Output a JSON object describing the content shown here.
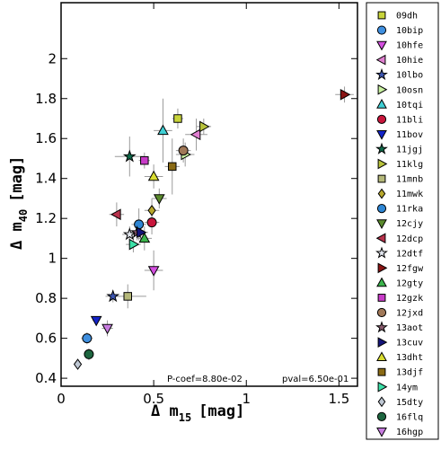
{
  "chart_data": {
    "type": "scatter",
    "xlabel": "Δ m",
    "xlabel_sub": "15",
    "xlabel_unit": "[mag]",
    "ylabel": "Δ m",
    "ylabel_sub": "40",
    "ylabel_unit": "[mag]",
    "xlim": [
      0,
      1.6
    ],
    "ylim": [
      0.36,
      2.28
    ],
    "xticks": [
      0,
      0.5,
      1,
      1.5
    ],
    "yticks": [
      0.4,
      0.6,
      0.8,
      1,
      1.2,
      1.4,
      1.6,
      1.8,
      2
    ],
    "grid": false,
    "legend_position": "right, outside plot",
    "annotations": {
      "pcoef": "P-coef=8.80e-02",
      "pval": "pval=6.50e-01"
    },
    "series": [
      {
        "name": "09dh",
        "marker": "square",
        "color": "#c8d43a",
        "x": 0.63,
        "y": 1.7,
        "xerr": 0.03,
        "yerr": 0.05
      },
      {
        "name": "10bip",
        "marker": "circle",
        "color": "#3f8fdf",
        "x": 0.14,
        "y": 0.6,
        "xerr": 0.03,
        "yerr": 0.03
      },
      {
        "name": "10hfe",
        "marker": "triangle-down",
        "color": "#d44fe0",
        "x": 0.5,
        "y": 0.94,
        "xerr": 0.05,
        "yerr": 0.1
      },
      {
        "name": "10hie",
        "marker": "triangle-left",
        "color": "#e07fd0",
        "x": 0.73,
        "y": 1.62,
        "xerr": 0.06,
        "yerr": 0.08
      },
      {
        "name": "10lbo",
        "marker": "star",
        "color": "#3d56b3",
        "x": 0.28,
        "y": 0.81,
        "xerr": 0.04,
        "yerr": 0.03
      },
      {
        "name": "10osn",
        "marker": "triangle-right",
        "color": "#c8f0a0",
        "x": 0.67,
        "y": 1.52,
        "xerr": 0.05,
        "yerr": 0.06
      },
      {
        "name": "10tqi",
        "marker": "triangle-up",
        "color": "#3fcfd4",
        "x": 0.55,
        "y": 1.64,
        "xerr": 0.05,
        "yerr": 0.16
      },
      {
        "name": "11bli",
        "marker": "circle",
        "color": "#c8163c",
        "x": 0.49,
        "y": 1.18,
        "xerr": 0.04,
        "yerr": 0.06
      },
      {
        "name": "11bov",
        "marker": "triangle-down",
        "color": "#1424c8",
        "x": 0.19,
        "y": 0.69,
        "xerr": 0.02,
        "yerr": 0.02
      },
      {
        "name": "11jgj",
        "marker": "star",
        "color": "#0e6a4a",
        "x": 0.37,
        "y": 1.51,
        "xerr": 0.08,
        "yerr": 0.1
      },
      {
        "name": "11klg",
        "marker": "triangle-right",
        "color": "#b8c23c",
        "x": 0.77,
        "y": 1.66,
        "xerr": 0.04,
        "yerr": 0.04
      },
      {
        "name": "11mnb",
        "marker": "square",
        "color": "#b5b87a",
        "x": 0.36,
        "y": 0.81,
        "xerr": 0.1,
        "yerr": 0.06
      },
      {
        "name": "11mwk",
        "marker": "diamond",
        "color": "#b8a82c",
        "x": 0.49,
        "y": 1.24,
        "xerr": 0.04,
        "yerr": 0.06
      },
      {
        "name": "11rka",
        "marker": "circle",
        "color": "#2e86d4",
        "x": 0.42,
        "y": 1.17,
        "xerr": 0.04,
        "yerr": 0.08
      },
      {
        "name": "12cjy",
        "marker": "triangle-down",
        "color": "#5a8a2c",
        "x": 0.53,
        "y": 1.3,
        "xerr": 0.04,
        "yerr": 0.05
      },
      {
        "name": "12dcp",
        "marker": "triangle-left",
        "color": "#b8324c",
        "x": 0.3,
        "y": 1.22,
        "xerr": 0.04,
        "yerr": 0.06
      },
      {
        "name": "12dtf",
        "marker": "star",
        "color": "#e4e8f0",
        "x": 0.37,
        "y": 1.12,
        "xerr": 0.04,
        "yerr": 0.04
      },
      {
        "name": "12fgw",
        "marker": "triangle-right",
        "color": "#8a1414",
        "x": 1.53,
        "y": 1.82,
        "xerr": 0.05,
        "yerr": 0.04
      },
      {
        "name": "12gty",
        "marker": "triangle-up",
        "color": "#3cb44c",
        "x": 0.45,
        "y": 1.1,
        "xerr": 0.04,
        "yerr": 0.06
      },
      {
        "name": "12gzk",
        "marker": "square",
        "color": "#c83cc8",
        "x": 0.45,
        "y": 1.49,
        "xerr": 0.03,
        "yerr": 0.04
      },
      {
        "name": "12jxd",
        "marker": "circle",
        "color": "#a07858",
        "x": 0.66,
        "y": 1.54,
        "xerr": 0.04,
        "yerr": 0.06
      },
      {
        "name": "13aot",
        "marker": "star",
        "color": "#8a5a6e",
        "x": 0.41,
        "y": 1.13,
        "xerr": 0.04,
        "yerr": 0.04
      },
      {
        "name": "13cuv",
        "marker": "triangle-right",
        "color": "#14147a",
        "x": 0.43,
        "y": 1.13,
        "xerr": 0.04,
        "yerr": 0.04
      },
      {
        "name": "13dht",
        "marker": "triangle-up",
        "color": "#d8dc30",
        "x": 0.5,
        "y": 1.41,
        "xerr": 0.05,
        "yerr": 0.06
      },
      {
        "name": "13djf",
        "marker": "square",
        "color": "#8a6a14",
        "x": 0.6,
        "y": 1.46,
        "xerr": 0.04,
        "yerr": 0.14
      },
      {
        "name": "14ym",
        "marker": "triangle-right",
        "color": "#3ce0a8",
        "x": 0.39,
        "y": 1.07,
        "xerr": 0.04,
        "yerr": 0.04
      },
      {
        "name": "15dty",
        "marker": "diamond",
        "color": "#bfc8d4",
        "x": 0.09,
        "y": 0.47,
        "xerr": 0.02,
        "yerr": 0.02
      },
      {
        "name": "16flq",
        "marker": "circle",
        "color": "#1e6640",
        "x": 0.15,
        "y": 0.52,
        "xerr": 0.02,
        "yerr": 0.03
      },
      {
        "name": "16hgp",
        "marker": "triangle-down",
        "color": "#c87ce0",
        "x": 0.25,
        "y": 0.65,
        "xerr": 0.03,
        "yerr": 0.04
      }
    ]
  }
}
